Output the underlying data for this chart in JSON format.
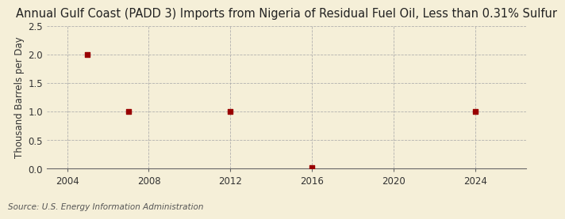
{
  "title": "Annual Gulf Coast (PADD 3) Imports from Nigeria of Residual Fuel Oil, Less than 0.31% Sulfur",
  "ylabel": "Thousand Barrels per Day",
  "source": "Source: U.S. Energy Information Administration",
  "x_data": [
    2005,
    2007,
    2012,
    2016,
    2024
  ],
  "y_data": [
    2.0,
    1.0,
    1.0,
    0.02,
    1.0
  ],
  "xlim": [
    2003,
    2026.5
  ],
  "ylim": [
    0.0,
    2.5
  ],
  "xticks": [
    2004,
    2008,
    2012,
    2016,
    2020,
    2024
  ],
  "yticks": [
    0.0,
    0.5,
    1.0,
    1.5,
    2.0,
    2.5
  ],
  "marker_color": "#990000",
  "marker_size": 5,
  "background_color": "#F5EFD8",
  "plot_bg_color": "#F5EFD8",
  "grid_color": "#AAAAAA",
  "title_fontsize": 10.5,
  "label_fontsize": 8.5,
  "tick_fontsize": 8.5,
  "source_fontsize": 7.5
}
